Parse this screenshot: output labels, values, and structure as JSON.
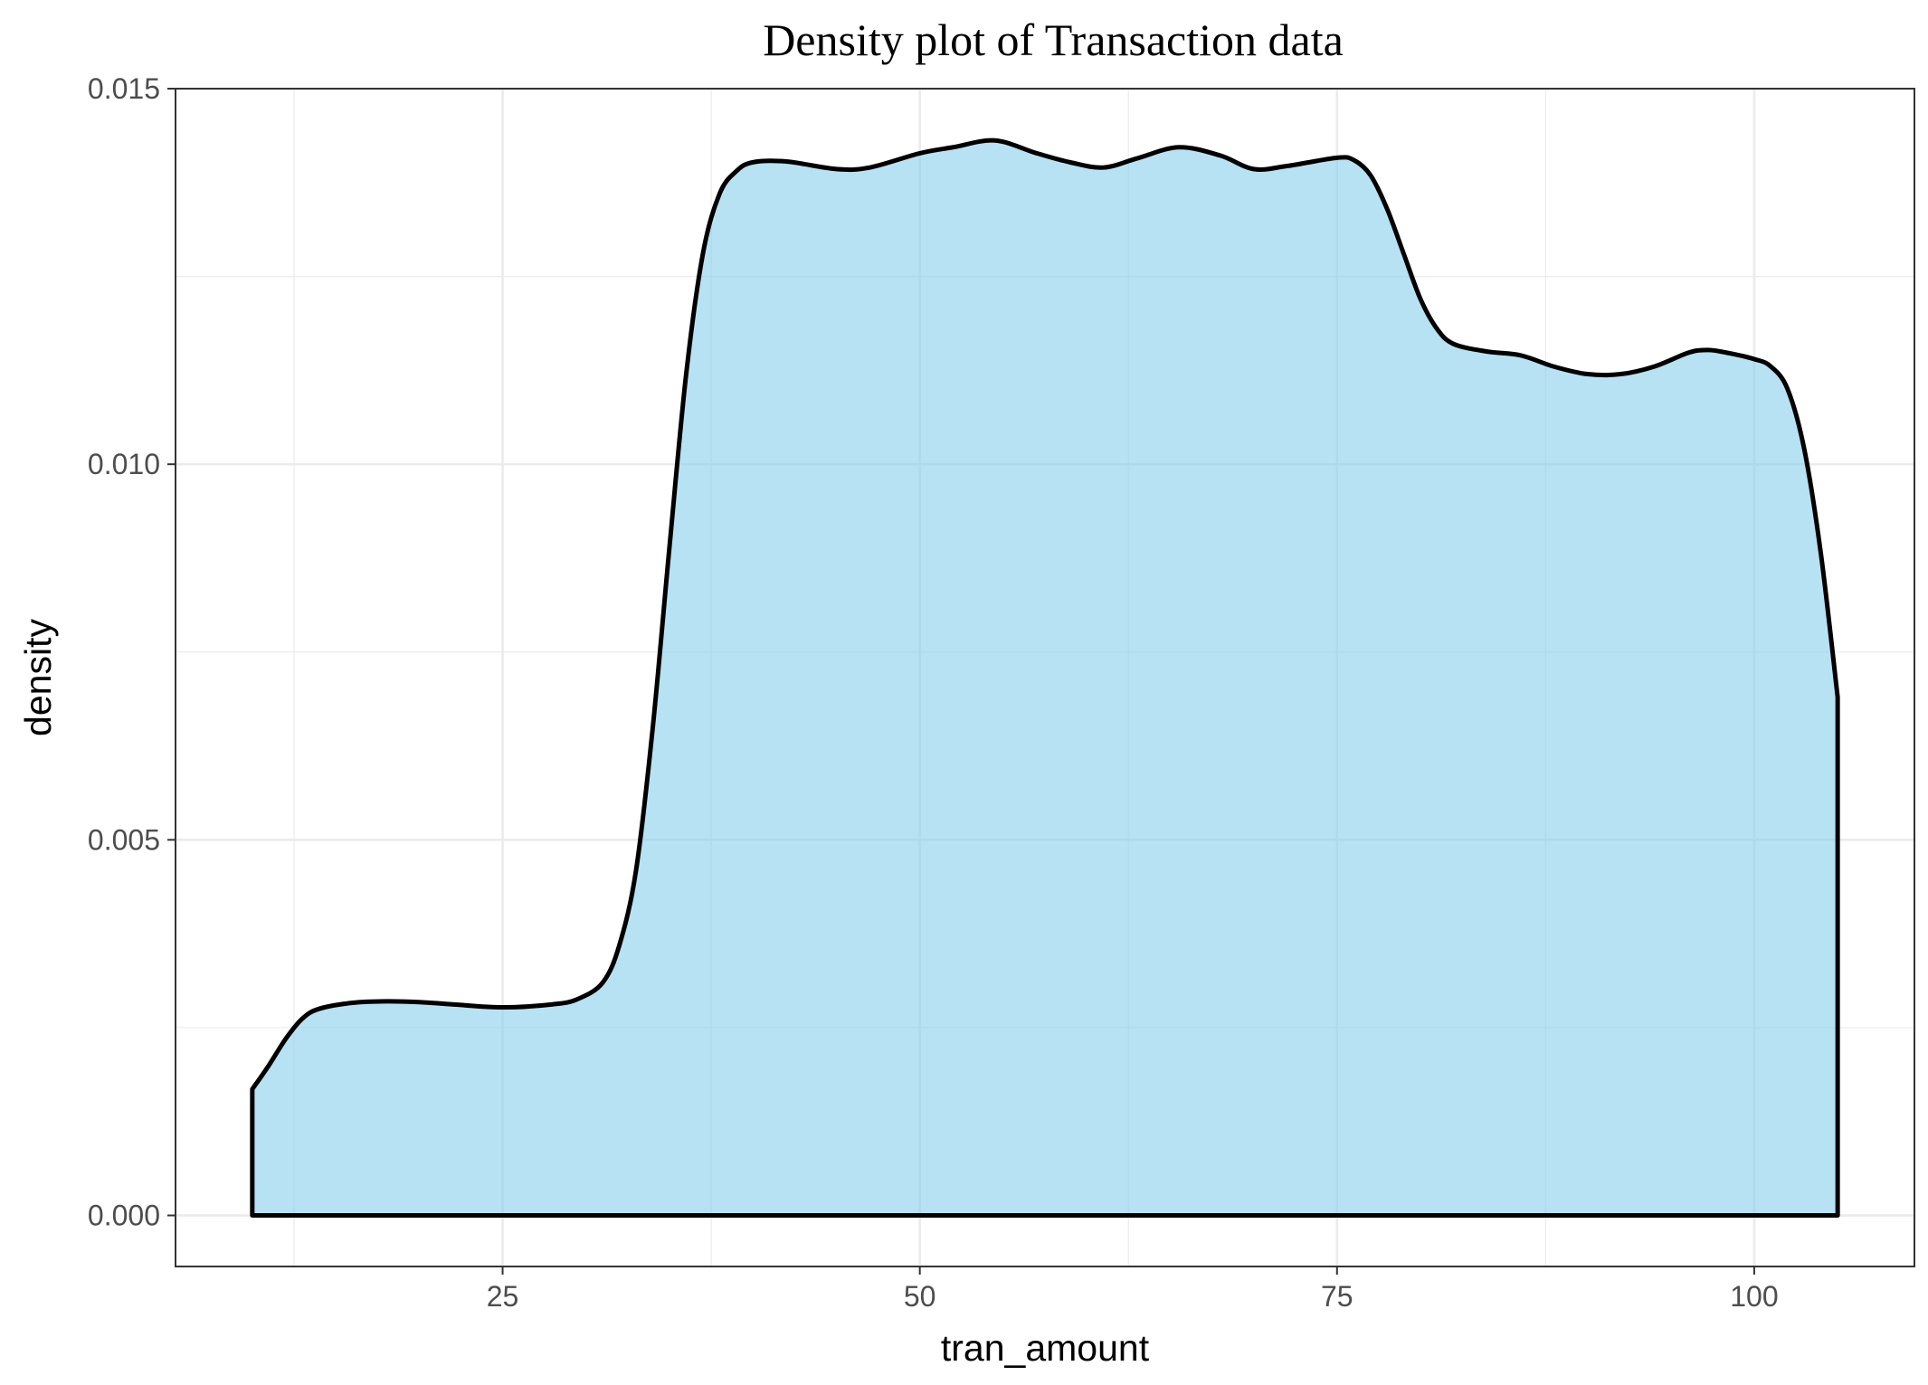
{
  "chart_data": {
    "type": "area",
    "title": "Density plot of Transaction data",
    "xlabel": "tran_amount",
    "ylabel": "density",
    "xlim": [
      5.4,
      109.6
    ],
    "ylim": [
      -0.00068,
      0.015
    ],
    "x_ticks": [
      25,
      50,
      75,
      100
    ],
    "x_tick_labels": [
      "25",
      "50",
      "75",
      "100"
    ],
    "y_ticks": [
      0,
      0.005,
      0.01,
      0.015
    ],
    "y_tick_labels": [
      "0.000",
      "0.005",
      "0.010",
      "0.015"
    ],
    "grid": true,
    "legend": "none",
    "fill_color": "#87ceeb",
    "fill_opacity": 0.6,
    "line_color": "#000000",
    "series": [
      {
        "x": [
          10,
          11,
          12,
          13,
          14,
          16,
          18,
          20,
          22,
          25,
          28,
          29.5,
          31,
          32,
          33,
          34,
          35,
          36,
          37,
          38,
          39,
          40,
          42,
          45,
          47,
          50,
          52,
          54.5,
          57,
          59,
          61,
          63,
          65.5,
          68,
          70,
          72,
          75,
          76,
          77,
          78,
          79,
          80,
          81,
          82,
          84,
          86,
          88,
          90,
          92,
          94,
          96,
          97,
          98,
          100,
          101,
          102,
          103,
          104,
          105
        ],
        "y": [
          0.00168,
          0.002,
          0.00235,
          0.00262,
          0.00275,
          0.00283,
          0.00285,
          0.00284,
          0.00281,
          0.00277,
          0.00281,
          0.00288,
          0.0031,
          0.0036,
          0.0046,
          0.0065,
          0.0089,
          0.0112,
          0.0128,
          0.0136,
          0.0139,
          0.01402,
          0.01403,
          0.01393,
          0.01395,
          0.01414,
          0.01422,
          0.01431,
          0.01414,
          0.01402,
          0.01395,
          0.01407,
          0.01422,
          0.01411,
          0.01393,
          0.01397,
          0.01408,
          0.01405,
          0.01385,
          0.0134,
          0.0128,
          0.0122,
          0.0118,
          0.0116,
          0.0115,
          0.01145,
          0.0113,
          0.0112,
          0.0112,
          0.0113,
          0.01148,
          0.01152,
          0.0115,
          0.0114,
          0.0113,
          0.011,
          0.0102,
          0.0088,
          0.0069
        ]
      }
    ]
  }
}
